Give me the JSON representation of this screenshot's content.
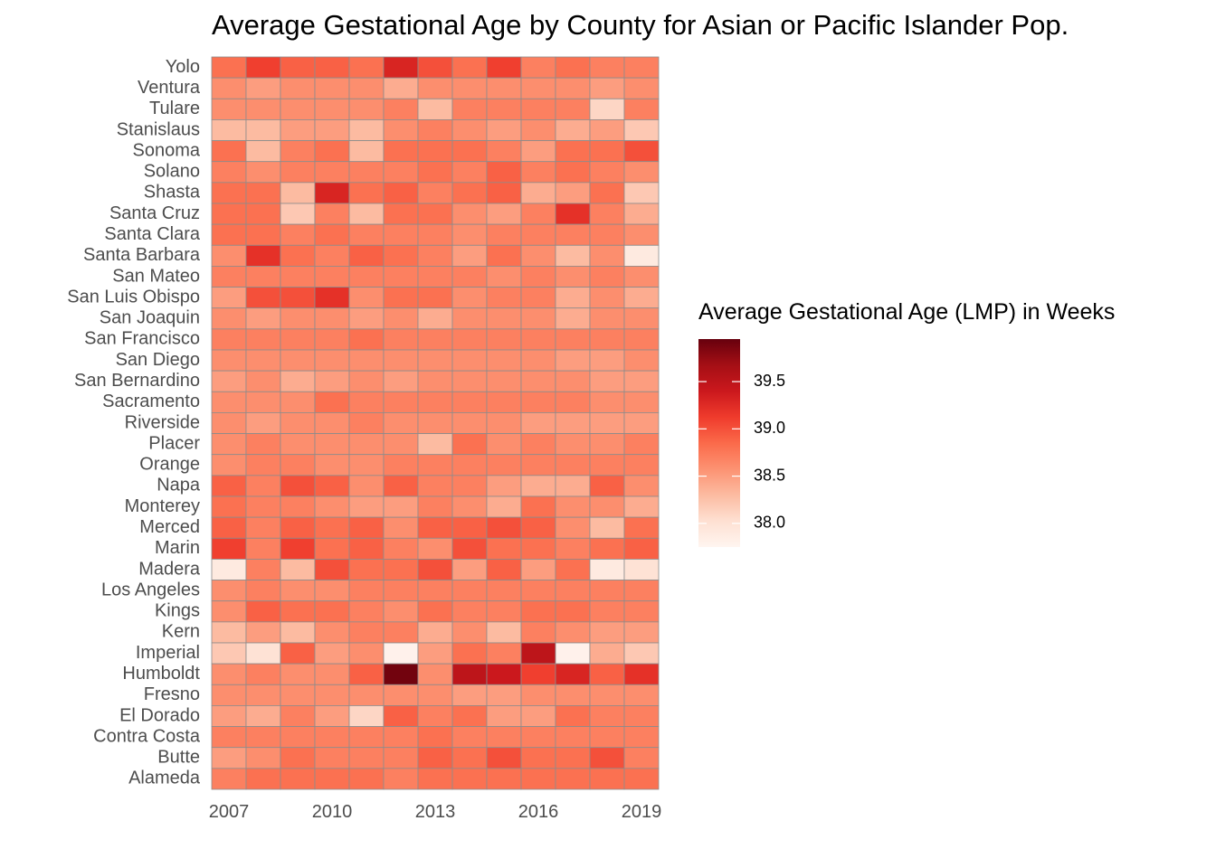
{
  "chart_data": {
    "type": "heatmap",
    "title": "Average Gestational Age by County for Asian or Pacific Islander Pop.",
    "xlabel": "",
    "ylabel": "",
    "x": [
      2007,
      2008,
      2009,
      2010,
      2011,
      2012,
      2013,
      2014,
      2015,
      2016,
      2017,
      2018,
      2019
    ],
    "x_ticks": [
      "2007",
      "2010",
      "2013",
      "2016",
      "2019"
    ],
    "y": [
      "Yolo",
      "Ventura",
      "Tulare",
      "Stanislaus",
      "Sonoma",
      "Solano",
      "Shasta",
      "Santa Cruz",
      "Santa Clara",
      "Santa Barbara",
      "San Mateo",
      "San Luis Obispo",
      "San Joaquin",
      "San Francisco",
      "San Diego",
      "San Bernardino",
      "Sacramento",
      "Riverside",
      "Placer",
      "Orange",
      "Napa",
      "Monterey",
      "Merced",
      "Marin",
      "Madera",
      "Los Angeles",
      "Kings",
      "Kern",
      "Imperial",
      "Humboldt",
      "Fresno",
      "El Dorado",
      "Contra Costa",
      "Butte",
      "Alameda"
    ],
    "values": [
      [
        38.8,
        39.1,
        38.9,
        38.9,
        38.8,
        39.3,
        39.0,
        38.8,
        39.1,
        38.7,
        38.8,
        38.7,
        38.7
      ],
      [
        38.6,
        38.5,
        38.6,
        38.6,
        38.6,
        38.4,
        38.6,
        38.6,
        38.6,
        38.6,
        38.6,
        38.5,
        38.6
      ],
      [
        38.6,
        38.6,
        38.6,
        38.6,
        38.6,
        38.7,
        38.3,
        38.7,
        38.7,
        38.7,
        38.7,
        38.1,
        38.7
      ],
      [
        38.3,
        38.3,
        38.5,
        38.5,
        38.3,
        38.6,
        38.7,
        38.6,
        38.5,
        38.6,
        38.4,
        38.5,
        38.2
      ],
      [
        38.8,
        38.3,
        38.7,
        38.8,
        38.3,
        38.8,
        38.8,
        38.8,
        38.7,
        38.5,
        38.8,
        38.8,
        39.0
      ],
      [
        38.7,
        38.6,
        38.7,
        38.7,
        38.7,
        38.7,
        38.8,
        38.7,
        38.9,
        38.7,
        38.8,
        38.7,
        38.6
      ],
      [
        38.8,
        38.8,
        38.3,
        39.3,
        38.8,
        38.9,
        38.7,
        38.8,
        38.9,
        38.4,
        38.5,
        38.8,
        38.2
      ],
      [
        38.8,
        38.8,
        38.2,
        38.7,
        38.3,
        38.8,
        38.8,
        38.6,
        38.5,
        38.7,
        39.2,
        38.7,
        38.4
      ],
      [
        38.8,
        38.8,
        38.7,
        38.8,
        38.7,
        38.7,
        38.7,
        38.6,
        38.7,
        38.7,
        38.7,
        38.7,
        38.6
      ],
      [
        38.6,
        39.2,
        38.8,
        38.7,
        38.9,
        38.8,
        38.7,
        38.5,
        38.8,
        38.6,
        38.3,
        38.6,
        37.9
      ],
      [
        38.7,
        38.7,
        38.7,
        38.7,
        38.7,
        38.7,
        38.7,
        38.7,
        38.6,
        38.7,
        38.6,
        38.7,
        38.6
      ],
      [
        38.5,
        39.0,
        39.0,
        39.2,
        38.6,
        38.8,
        38.8,
        38.6,
        38.7,
        38.7,
        38.4,
        38.6,
        38.4
      ],
      [
        38.6,
        38.5,
        38.6,
        38.6,
        38.5,
        38.6,
        38.4,
        38.6,
        38.6,
        38.6,
        38.4,
        38.6,
        38.6
      ],
      [
        38.7,
        38.7,
        38.7,
        38.7,
        38.8,
        38.7,
        38.7,
        38.7,
        38.7,
        38.7,
        38.7,
        38.7,
        38.7
      ],
      [
        38.6,
        38.6,
        38.6,
        38.6,
        38.6,
        38.6,
        38.6,
        38.6,
        38.6,
        38.6,
        38.5,
        38.5,
        38.6
      ],
      [
        38.5,
        38.6,
        38.4,
        38.5,
        38.6,
        38.5,
        38.6,
        38.6,
        38.6,
        38.6,
        38.6,
        38.5,
        38.5
      ],
      [
        38.6,
        38.6,
        38.6,
        38.8,
        38.7,
        38.7,
        38.7,
        38.7,
        38.7,
        38.7,
        38.7,
        38.6,
        38.6
      ],
      [
        38.6,
        38.5,
        38.6,
        38.6,
        38.7,
        38.6,
        38.6,
        38.6,
        38.6,
        38.5,
        38.5,
        38.5,
        38.5
      ],
      [
        38.6,
        38.7,
        38.6,
        38.6,
        38.6,
        38.6,
        38.3,
        38.8,
        38.6,
        38.7,
        38.6,
        38.6,
        38.7
      ],
      [
        38.6,
        38.7,
        38.7,
        38.6,
        38.6,
        38.7,
        38.7,
        38.7,
        38.7,
        38.7,
        38.7,
        38.7,
        38.7
      ],
      [
        38.9,
        38.7,
        39.0,
        38.9,
        38.6,
        38.9,
        38.7,
        38.7,
        38.5,
        38.4,
        38.4,
        38.9,
        38.6
      ],
      [
        38.8,
        38.7,
        38.7,
        38.6,
        38.5,
        38.5,
        38.7,
        38.6,
        38.4,
        38.8,
        38.6,
        38.6,
        38.4
      ],
      [
        38.9,
        38.7,
        38.9,
        38.8,
        38.9,
        38.6,
        38.9,
        38.9,
        39.0,
        38.9,
        38.6,
        38.3,
        38.8
      ],
      [
        39.1,
        38.7,
        39.1,
        38.8,
        38.9,
        38.7,
        38.6,
        39.0,
        38.8,
        38.8,
        38.7,
        38.8,
        38.9
      ],
      [
        37.9,
        38.7,
        38.3,
        39.0,
        38.8,
        38.8,
        39.0,
        38.5,
        38.9,
        38.5,
        38.8,
        37.9,
        38.0
      ],
      [
        38.6,
        38.7,
        38.6,
        38.6,
        38.7,
        38.7,
        38.7,
        38.7,
        38.7,
        38.7,
        38.7,
        38.7,
        38.7
      ],
      [
        38.6,
        38.9,
        38.8,
        38.8,
        38.7,
        38.6,
        38.8,
        38.7,
        38.7,
        38.8,
        38.8,
        38.7,
        38.7
      ],
      [
        38.3,
        38.5,
        38.3,
        38.6,
        38.7,
        38.7,
        38.4,
        38.6,
        38.3,
        38.7,
        38.6,
        38.5,
        38.5
      ],
      [
        38.2,
        38.0,
        38.9,
        38.5,
        38.6,
        37.8,
        38.5,
        38.8,
        38.7,
        39.5,
        37.8,
        38.4,
        38.2
      ],
      [
        38.6,
        38.7,
        38.6,
        38.6,
        38.9,
        39.9,
        38.6,
        39.5,
        39.4,
        39.1,
        39.3,
        38.9,
        39.2
      ],
      [
        38.6,
        38.6,
        38.6,
        38.6,
        38.6,
        38.6,
        38.6,
        38.5,
        38.5,
        38.6,
        38.6,
        38.6,
        38.6
      ],
      [
        38.5,
        38.4,
        38.7,
        38.5,
        38.1,
        38.9,
        38.7,
        38.8,
        38.5,
        38.5,
        38.8,
        38.7,
        38.7
      ],
      [
        38.7,
        38.7,
        38.7,
        38.7,
        38.7,
        38.7,
        38.8,
        38.7,
        38.7,
        38.7,
        38.7,
        38.7,
        38.7
      ],
      [
        38.5,
        38.6,
        38.8,
        38.7,
        38.7,
        38.7,
        38.9,
        38.8,
        39.0,
        38.8,
        38.8,
        39.0,
        38.7
      ],
      [
        38.7,
        38.8,
        38.8,
        38.8,
        38.8,
        38.7,
        38.8,
        38.8,
        38.8,
        38.8,
        38.8,
        38.8,
        38.8
      ]
    ],
    "legend": {
      "title": "Average Gestational Age (LMP) in Weeks",
      "placement": "right",
      "range": [
        37.75,
        39.95
      ],
      "ticks": [
        "39.5",
        "39.0",
        "38.5",
        "38.0"
      ],
      "colors": [
        "#fff5f0",
        "#fee0d2",
        "#fcbba1",
        "#fc9272",
        "#fb6a4a",
        "#ef3b2c",
        "#cb181d",
        "#a50f15",
        "#67000d"
      ]
    },
    "grid": false,
    "cell_border_color": "#8c8c8c"
  }
}
